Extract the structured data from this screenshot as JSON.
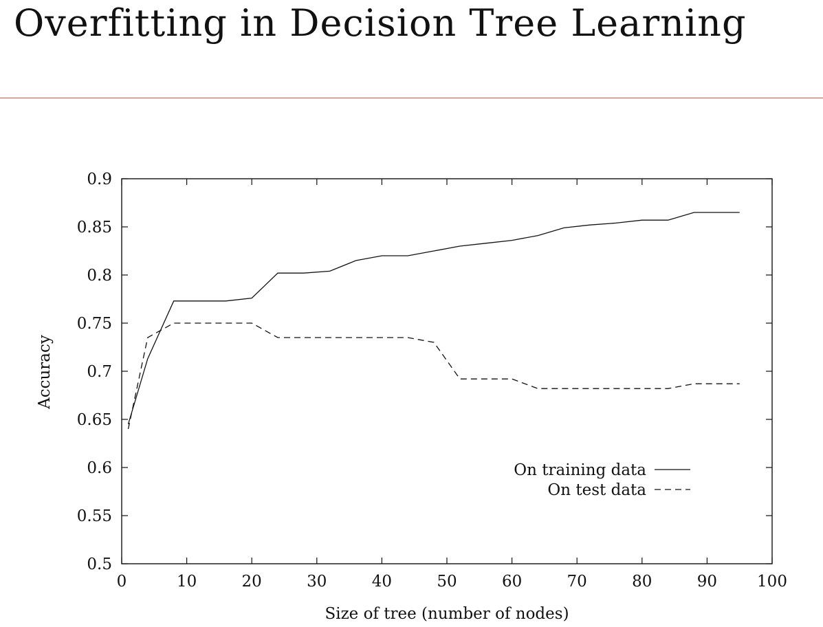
{
  "slide": {
    "title": "Overfitting in Decision Tree Learning"
  },
  "chart_data": {
    "type": "line",
    "xlabel": "Size of tree (number of nodes)",
    "ylabel": "Accuracy",
    "xlim": [
      0,
      100
    ],
    "ylim": [
      0.5,
      0.9
    ],
    "xticks": [
      0,
      10,
      20,
      30,
      40,
      50,
      60,
      70,
      80,
      90,
      100
    ],
    "yticks": [
      0.5,
      0.55,
      0.6,
      0.65,
      0.7,
      0.75,
      0.8,
      0.85,
      0.9
    ],
    "xtick_labels": [
      "0",
      "10",
      "20",
      "30",
      "40",
      "50",
      "60",
      "70",
      "80",
      "90",
      "100"
    ],
    "ytick_labels": [
      "0.5",
      "0.55",
      "0.6",
      "0.65",
      "0.7",
      "0.75",
      "0.8",
      "0.85",
      "0.9"
    ],
    "grid": false,
    "legend_position": "bottom-right",
    "series": [
      {
        "name": "On training data",
        "style": "solid",
        "color": "#111111",
        "x": [
          1,
          4,
          8,
          12,
          16,
          20,
          24,
          28,
          32,
          36,
          40,
          44,
          48,
          52,
          56,
          60,
          64,
          68,
          72,
          76,
          80,
          84,
          88,
          92,
          95
        ],
        "y": [
          0.645,
          0.713,
          0.773,
          0.773,
          0.773,
          0.776,
          0.802,
          0.802,
          0.804,
          0.815,
          0.82,
          0.82,
          0.825,
          0.83,
          0.833,
          0.836,
          0.841,
          0.849,
          0.852,
          0.854,
          0.857,
          0.857,
          0.865,
          0.865,
          0.865
        ]
      },
      {
        "name": "On test data",
        "style": "dashed",
        "color": "#111111",
        "x": [
          1,
          4,
          8,
          12,
          16,
          20,
          24,
          28,
          32,
          36,
          40,
          44,
          48,
          52,
          56,
          60,
          64,
          68,
          72,
          76,
          80,
          84,
          88,
          92,
          95
        ],
        "y": [
          0.64,
          0.735,
          0.75,
          0.75,
          0.75,
          0.75,
          0.735,
          0.735,
          0.735,
          0.735,
          0.735,
          0.735,
          0.73,
          0.692,
          0.692,
          0.692,
          0.682,
          0.682,
          0.682,
          0.682,
          0.682,
          0.682,
          0.687,
          0.687,
          0.687
        ]
      }
    ]
  }
}
